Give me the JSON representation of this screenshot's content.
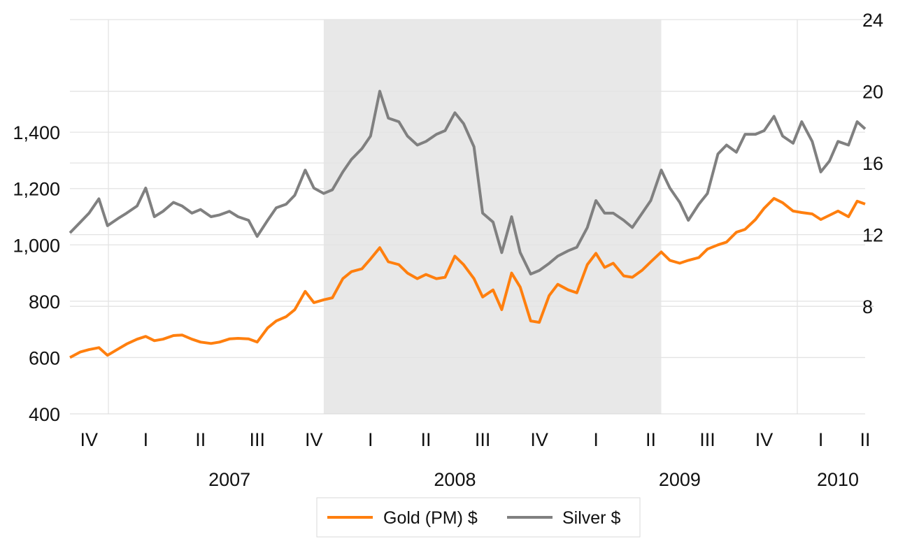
{
  "chart_data": {
    "type": "line",
    "title": "",
    "xlabel": "",
    "ylabel": "",
    "grid": true,
    "legend_position": "bottom",
    "shaded_region": [
      "2007-12-01",
      "2009-06-01"
    ],
    "shaded_color": "#e8e8e8",
    "x_range": [
      "2006-10-15",
      "2010-04-28"
    ],
    "y_left": {
      "lim": [
        400,
        1800
      ],
      "ticks": [
        400,
        600,
        800,
        1000,
        1200,
        1400
      ],
      "tick_labels": [
        "400",
        "600",
        "800",
        "1,000",
        "1,200",
        "1,400"
      ]
    },
    "y_right": {
      "lim": [
        2,
        24
      ],
      "ticks": [
        8,
        12,
        16,
        20,
        24
      ],
      "tick_labels": [
        "8",
        "12",
        "16",
        "20",
        "24"
      ]
    },
    "quarter_labels": [
      {
        "label": "IV",
        "quarter": "2006-Q4"
      },
      {
        "label": "I",
        "quarter": "2007-Q1"
      },
      {
        "label": "II",
        "quarter": "2007-Q2"
      },
      {
        "label": "III",
        "quarter": "2007-Q3"
      },
      {
        "label": "IV",
        "quarter": "2007-Q4"
      },
      {
        "label": "I",
        "quarter": "2008-Q1"
      },
      {
        "label": "II",
        "quarter": "2008-Q2"
      },
      {
        "label": "III",
        "quarter": "2008-Q3"
      },
      {
        "label": "IV",
        "quarter": "2008-Q4"
      },
      {
        "label": "I",
        "quarter": "2009-Q1"
      },
      {
        "label": "II",
        "quarter": "2009-Q2"
      },
      {
        "label": "III",
        "quarter": "2009-Q3"
      },
      {
        "label": "IV",
        "quarter": "2009-Q4"
      },
      {
        "label": "I",
        "quarter": "2010-Q1"
      },
      {
        "label": "II",
        "quarter": "2010-Q2"
      }
    ],
    "year_labels": [
      "2007",
      "2008",
      "2009",
      "2010"
    ],
    "x": [
      "2006-10-15",
      "2006-11-01",
      "2006-11-15",
      "2006-12-01",
      "2006-12-15",
      "2007-01-01",
      "2007-01-15",
      "2007-02-01",
      "2007-02-15",
      "2007-03-01",
      "2007-03-15",
      "2007-04-01",
      "2007-04-15",
      "2007-05-01",
      "2007-05-15",
      "2007-06-01",
      "2007-06-15",
      "2007-07-01",
      "2007-07-15",
      "2007-08-01",
      "2007-08-15",
      "2007-09-01",
      "2007-09-15",
      "2007-10-01",
      "2007-10-15",
      "2007-11-01",
      "2007-11-15",
      "2007-12-01",
      "2007-12-15",
      "2008-01-01",
      "2008-01-15",
      "2008-02-01",
      "2008-02-15",
      "2008-03-01",
      "2008-03-15",
      "2008-04-01",
      "2008-04-15",
      "2008-05-01",
      "2008-05-15",
      "2008-06-01",
      "2008-06-15",
      "2008-07-01",
      "2008-07-15",
      "2008-08-01",
      "2008-08-15",
      "2008-09-01",
      "2008-09-15",
      "2008-10-01",
      "2008-10-15",
      "2008-11-01",
      "2008-11-15",
      "2008-12-01",
      "2008-12-15",
      "2009-01-01",
      "2009-01-15",
      "2009-02-01",
      "2009-02-15",
      "2009-03-01",
      "2009-03-15",
      "2009-04-01",
      "2009-04-15",
      "2009-05-01",
      "2009-05-15",
      "2009-06-01",
      "2009-06-15",
      "2009-07-01",
      "2009-07-15",
      "2009-08-01",
      "2009-08-15",
      "2009-09-01",
      "2009-09-15",
      "2009-10-01",
      "2009-10-15",
      "2009-11-01",
      "2009-11-15",
      "2009-12-01",
      "2009-12-15",
      "2010-01-01",
      "2010-01-15",
      "2010-02-01",
      "2010-02-15",
      "2010-03-01",
      "2010-03-15",
      "2010-04-01",
      "2010-04-15",
      "2010-04-28"
    ],
    "series": [
      {
        "name": "Gold (PM) $",
        "axis": "left",
        "color": "#ff7f0e",
        "values": [
          600,
          620,
          628,
          635,
          608,
          630,
          648,
          665,
          675,
          660,
          665,
          678,
          680,
          665,
          655,
          650,
          655,
          666,
          668,
          666,
          655,
          705,
          730,
          745,
          770,
          835,
          795,
          805,
          812,
          880,
          905,
          915,
          950,
          990,
          940,
          930,
          900,
          880,
          895,
          880,
          885,
          960,
          930,
          880,
          815,
          840,
          770,
          900,
          850,
          730,
          725,
          820,
          860,
          840,
          830,
          930,
          970,
          920,
          935,
          890,
          885,
          910,
          940,
          975,
          945,
          935,
          945,
          955,
          985,
          1000,
          1010,
          1045,
          1055,
          1090,
          1130,
          1165,
          1150,
          1120,
          1115,
          1110,
          1090,
          1105,
          1120,
          1100,
          1155,
          1145
        ]
      },
      {
        "name": "Silver $",
        "axis": "right",
        "color": "#808080",
        "values": [
          12.1,
          12.7,
          13.2,
          14.0,
          12.5,
          12.9,
          13.2,
          13.6,
          14.6,
          13.0,
          13.3,
          13.8,
          13.6,
          13.2,
          13.4,
          13.0,
          13.1,
          13.3,
          13.0,
          12.8,
          11.9,
          12.8,
          13.5,
          13.7,
          14.2,
          15.6,
          14.6,
          14.3,
          14.5,
          15.5,
          16.2,
          16.8,
          17.5,
          20.0,
          18.5,
          18.3,
          17.5,
          17.0,
          17.2,
          17.6,
          17.8,
          18.8,
          18.2,
          16.9,
          13.2,
          12.7,
          11.0,
          13.0,
          11.0,
          9.8,
          10.0,
          10.4,
          10.8,
          11.1,
          11.3,
          12.4,
          13.9,
          13.2,
          13.2,
          12.8,
          12.4,
          13.2,
          13.9,
          15.6,
          14.6,
          13.8,
          12.8,
          13.7,
          14.3,
          16.5,
          17.0,
          16.6,
          17.6,
          17.6,
          17.8,
          18.6,
          17.5,
          17.1,
          18.3,
          17.2,
          15.5,
          16.1,
          17.2,
          17.0,
          18.3,
          17.9
        ]
      }
    ]
  }
}
